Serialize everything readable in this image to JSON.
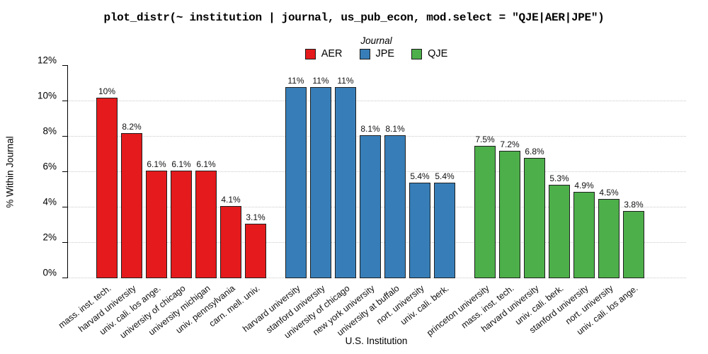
{
  "title": "plot_distr(~ institution | journal, us_pub_econ, mod.select = \"QJE|AER|JPE\")",
  "legend": {
    "title": "Journal",
    "items": [
      {
        "label": "AER",
        "color": "#e41a1c"
      },
      {
        "label": "JPE",
        "color": "#377eb8"
      },
      {
        "label": "QJE",
        "color": "#4daf4a"
      }
    ]
  },
  "colors": {
    "bar_border": "#1f1f1f",
    "gridline": "#c9c9c9"
  },
  "chart_data": {
    "type": "bar",
    "title": "plot_distr(~ institution | journal, us_pub_econ, mod.select = \"QJE|AER|JPE\")",
    "xlabel": "U.S. Institution",
    "ylabel": "% Within Journal",
    "ylim": [
      0,
      12
    ],
    "ytick_values": [
      0,
      2,
      4,
      6,
      8,
      10,
      12
    ],
    "ytick_labels": [
      "0%",
      "2%",
      "4%",
      "6%",
      "8%",
      "10%",
      "12%"
    ],
    "grid": "horizontal-dotted",
    "legend_position": "top-center",
    "series": [
      {
        "name": "AER",
        "color": "#e41a1c",
        "categories": [
          "mass. inst. tech.",
          "harvard university",
          "univ. cali. los ange.",
          "university of chicago",
          "university michigan",
          "univ. pennsylvania",
          "carn. mell. univ."
        ],
        "values": [
          10.2,
          8.2,
          6.1,
          6.1,
          6.1,
          4.1,
          3.1
        ],
        "labels": [
          "10%",
          "8.2%",
          "6.1%",
          "6.1%",
          "6.1%",
          "4.1%",
          "3.1%"
        ]
      },
      {
        "name": "JPE",
        "color": "#377eb8",
        "categories": [
          "harvard university",
          "stanford university",
          "university of chicago",
          "new york university",
          "university at buffalo",
          "nort. university",
          "univ. cali. berk."
        ],
        "values": [
          10.8,
          10.8,
          10.8,
          8.1,
          8.1,
          5.4,
          5.4
        ],
        "labels": [
          "11%",
          "11%",
          "11%",
          "8.1%",
          "8.1%",
          "5.4%",
          "5.4%"
        ]
      },
      {
        "name": "QJE",
        "color": "#4daf4a",
        "categories": [
          "princeton university",
          "mass. inst. tech.",
          "harvard university",
          "univ. cali. berk.",
          "stanford university",
          "nort. university",
          "univ. cali. los ange."
        ],
        "values": [
          7.5,
          7.2,
          6.8,
          5.3,
          4.9,
          4.5,
          3.8
        ],
        "labels": [
          "7.5%",
          "7.2%",
          "6.8%",
          "5.3%",
          "4.9%",
          "4.5%",
          "3.8%"
        ]
      }
    ]
  }
}
